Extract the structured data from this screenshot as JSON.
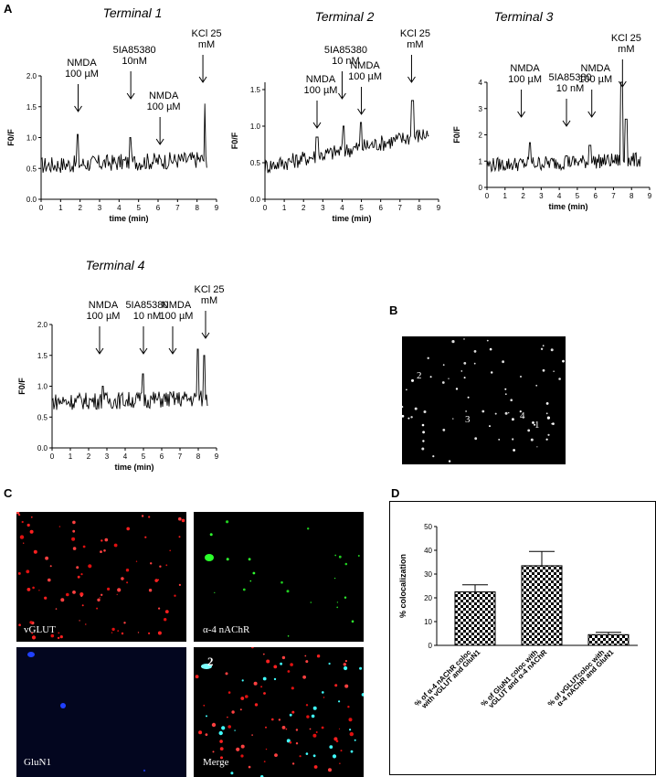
{
  "panel_labels": {
    "a": "A",
    "b": "B",
    "c": "C",
    "d": "D"
  },
  "terminals": [
    {
      "title": "Terminal 1",
      "ylabel": "F0/F",
      "xlabel": "time (min)",
      "xticks": [
        "0",
        "1",
        "2",
        "3",
        "4",
        "5",
        "6",
        "7",
        "8",
        "9"
      ],
      "yticks": [
        "0.0",
        "0.5",
        "1.0",
        "1.5",
        "2.0"
      ],
      "ymax": 2.0,
      "annotations": [
        {
          "lines": [
            "NMDA",
            "100 µM"
          ],
          "x": 1.9
        },
        {
          "lines": [
            "5IA85380",
            "10nM"
          ],
          "x": 4.6
        },
        {
          "lines": [
            "NMDA",
            "100 µM"
          ],
          "x": 6.1
        },
        {
          "lines": [
            "KCl 25",
            "mM"
          ],
          "x": 8.3
        }
      ]
    },
    {
      "title": "Terminal 2",
      "ylabel": "F0/F",
      "xlabel": "time (min)",
      "xticks": [
        "0",
        "1",
        "2",
        "3",
        "4",
        "5",
        "6",
        "7",
        "8",
        "9"
      ],
      "yticks": [
        "0.0",
        "0.5",
        "1.0",
        "1.5"
      ],
      "ymax": 1.6,
      "annotations": [
        {
          "lines": [
            "NMDA",
            "100 µM"
          ],
          "x": 2.7
        },
        {
          "lines": [
            "5IA85380",
            "10 nM"
          ],
          "x": 4.0
        },
        {
          "lines": [
            "NMDA",
            "100 µM"
          ],
          "x": 5.0
        },
        {
          "lines": [
            "KCl 25",
            "mM"
          ],
          "x": 7.6
        }
      ]
    },
    {
      "title": "Terminal 3",
      "ylabel": "F0/F",
      "xlabel": "time (min)",
      "xticks": [
        "0",
        "1",
        "2",
        "3",
        "4",
        "5",
        "6",
        "7",
        "8",
        "9"
      ],
      "yticks": [
        "0",
        "1",
        "2",
        "3",
        "4"
      ],
      "ymax": 4.0,
      "annotations": [
        {
          "lines": [
            "NMDA",
            "100 µM"
          ],
          "x": 1.9
        },
        {
          "lines": [
            "5IA85380",
            "10 nM"
          ],
          "x": 4.4
        },
        {
          "lines": [
            "NMDA",
            "100 µM"
          ],
          "x": 5.8
        },
        {
          "lines": [
            "KCl 25",
            "mM"
          ],
          "x": 7.5
        }
      ]
    },
    {
      "title": "Terminal 4",
      "ylabel": "F0/F",
      "xlabel": "time (min)",
      "xticks": [
        "0",
        "1",
        "2",
        "3",
        "4",
        "5",
        "6",
        "7",
        "8",
        "9"
      ],
      "yticks": [
        "0.0",
        "0.5",
        "1.0",
        "1.5",
        "2.0"
      ],
      "ymax": 2.0,
      "annotations": [
        {
          "lines": [
            "NMDA",
            "100 µM"
          ],
          "x": 2.6
        },
        {
          "lines": [
            "5IA85380",
            "10 nM"
          ],
          "x": 5.0
        },
        {
          "lines": [
            "NMDA",
            "100 µM"
          ],
          "x": 6.6
        },
        {
          "lines": [
            "KCl 25",
            "mM"
          ],
          "x": 8.4
        }
      ]
    }
  ],
  "panel_b": {
    "labels": [
      "2",
      "3",
      "4",
      "1"
    ]
  },
  "panel_c": {
    "labels": [
      "vGLUT",
      "α-4 nAChR",
      "GluN1",
      "Merge"
    ],
    "merge_marker": "2"
  },
  "chart_data": {
    "type": "bar",
    "ylabel": "% colocalization",
    "ylim": [
      0,
      50
    ],
    "yticks": [
      "0",
      "10",
      "20",
      "30",
      "40",
      "50"
    ],
    "categories": [
      "% of α-4 nAChR coloc with vGLUT and GluN1",
      "% of GluN1 coloc with vGLUT and α-4 nAChR",
      "% of vGLUTcoloc with α-4 nAChR and GluN1"
    ],
    "category_lines": [
      [
        "% of α-4 nAChR coloc",
        "with vGLUT and GluN1"
      ],
      [
        "% of GluN1 coloc with",
        "vGLUT and α-4 nAChR"
      ],
      [
        "% of vGLUTcoloc with",
        "α-4 nAChR and GluN1"
      ]
    ],
    "values": [
      22.5,
      33.5,
      4.5
    ],
    "errors": [
      3.0,
      6.0,
      1.0
    ],
    "pattern": "checkerboard"
  }
}
